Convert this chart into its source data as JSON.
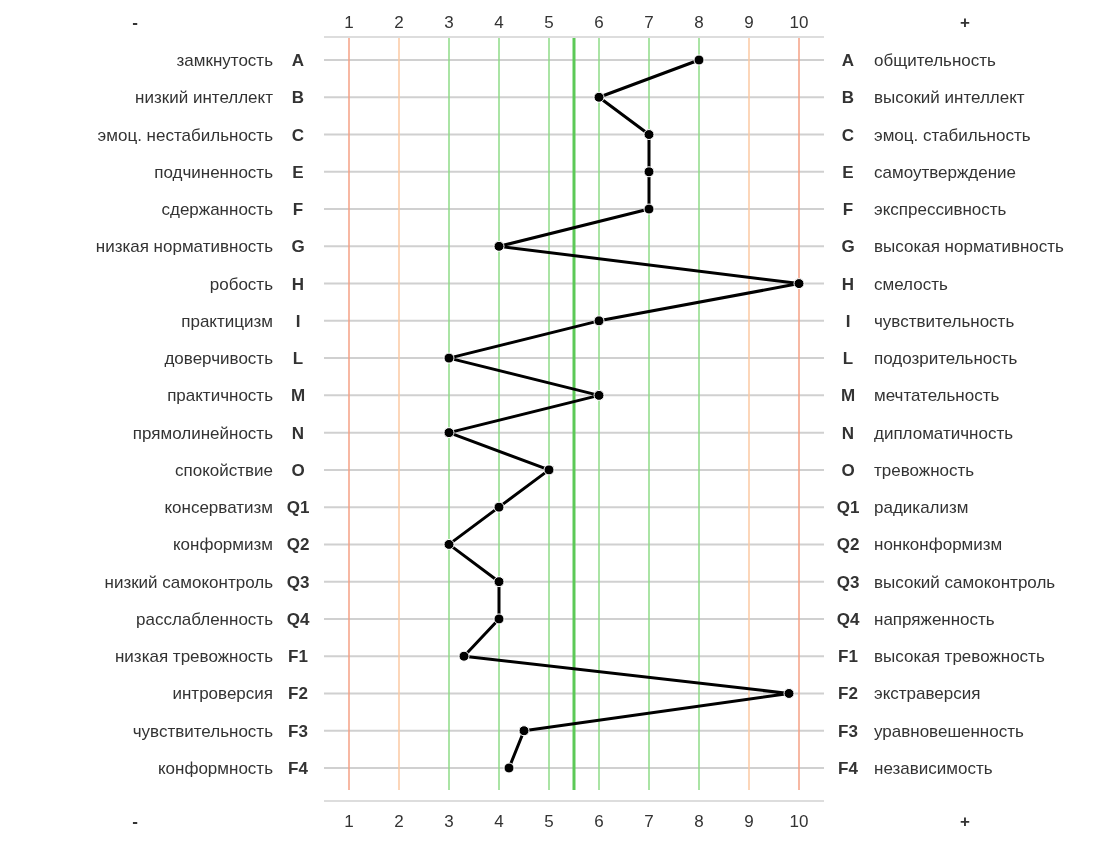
{
  "chart_data": {
    "type": "line",
    "orientation": "horizontal",
    "categories": [
      "A",
      "B",
      "C",
      "E",
      "F",
      "G",
      "H",
      "I",
      "L",
      "M",
      "N",
      "O",
      "Q1",
      "Q2",
      "Q3",
      "Q4",
      "F1",
      "F2",
      "F3",
      "F4"
    ],
    "y_categories": [
      "замкнутость",
      "низкий интеллект",
      "эмоц. нестабильность",
      "подчиненность",
      "сдержанность",
      "низкая нормативность",
      "робость",
      "практицизм",
      "доверчивость",
      "практичность",
      "прямолинейность",
      "спокойствие",
      "консерватизм",
      "конформизм",
      "низкий самоконтроль",
      "расслабленность",
      "низкая тревожность",
      "интроверсия",
      "чувствительность",
      "конформность"
    ],
    "y2_categories": [
      "общительность",
      "высокий интеллект",
      "эмоц. стабильность",
      "самоутверждение",
      "экспрессивность",
      "высокая нормативность",
      "смелость",
      "чувствительность",
      "подозрительность",
      "мечтательность",
      "дипломатичность",
      "тревожность",
      "радикализм",
      "нонконформизм",
      "высокий самоконтроль",
      "напряженность",
      "высокая тревожность",
      "экстраверсия",
      "уравновешенность",
      "независимость"
    ],
    "series": [
      {
        "color": "#000000",
        "values": [
          8,
          6,
          7,
          7,
          7,
          4,
          10,
          6,
          3,
          6,
          3,
          5,
          4,
          3,
          4,
          4,
          3.3,
          9.8,
          4.5,
          4.2
        ]
      }
    ],
    "xlim": [
      0.5,
      10.5
    ],
    "xticks": [
      1,
      2,
      3,
      4,
      5,
      6,
      7,
      8,
      9,
      10
    ],
    "x2lim": [
      0.5,
      10.5
    ],
    "x2ticks": [
      1,
      2,
      3,
      4,
      5,
      6,
      7,
      8,
      9,
      10
    ],
    "annotations": [
      "-",
      "+"
    ],
    "ref_lines": [
      {
        "axis": "x",
        "value": 1,
        "color": "#f4a085"
      },
      {
        "axis": "x",
        "value": 2,
        "color": "#fbc9a2"
      },
      {
        "axis": "x",
        "value": 3,
        "color": "#8edb87"
      },
      {
        "axis": "x",
        "value": 4,
        "color": "#8edb87"
      },
      {
        "axis": "x",
        "value": 5,
        "color": "#8edb87"
      },
      {
        "axis": "x",
        "value": 5.5,
        "color": "#5cc957"
      },
      {
        "axis": "x",
        "value": 6,
        "color": "#8edb87"
      },
      {
        "axis": "x",
        "value": 7,
        "color": "#8edb87"
      },
      {
        "axis": "x",
        "value": 8,
        "color": "#8edb87"
      },
      {
        "axis": "x",
        "value": 9,
        "color": "#fbc9a2"
      },
      {
        "axis": "x",
        "value": 10,
        "color": "#f4a085"
      }
    ],
    "grid": "y",
    "marker": "circle",
    "line_style": "solid"
  }
}
